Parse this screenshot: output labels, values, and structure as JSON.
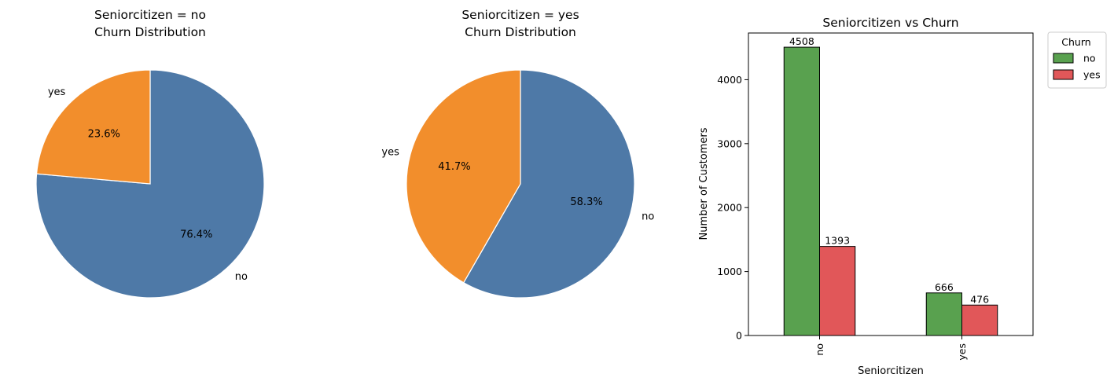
{
  "colors": {
    "pie_no": "#4e79a7",
    "pie_yes": "#f28e2c",
    "bar_no": "#59a14f",
    "bar_yes": "#e15759"
  },
  "chart_data": [
    {
      "type": "pie",
      "title_line1": "Seniorcitizen = no",
      "title_line2": "Churn Distribution",
      "labels": [
        "no",
        "yes"
      ],
      "values": [
        76.4,
        23.6
      ],
      "pct_labels": [
        "76.4%",
        "23.6%"
      ]
    },
    {
      "type": "pie",
      "title_line1": "Seniorcitizen = yes",
      "title_line2": "Churn Distribution",
      "labels": [
        "no",
        "yes"
      ],
      "values": [
        58.3,
        41.7
      ],
      "pct_labels": [
        "58.3%",
        "41.7%"
      ]
    },
    {
      "type": "bar",
      "title": "Seniorcitizen vs Churn",
      "xlabel": "Seniorcitizen",
      "ylabel": "Number of Customers",
      "categories": [
        "no",
        "yes"
      ],
      "series": [
        {
          "name": "no",
          "values": [
            4508,
            666
          ]
        },
        {
          "name": "yes",
          "values": [
            1393,
            476
          ]
        }
      ],
      "ylim": [
        0,
        4730
      ],
      "yticks": [
        0,
        1000,
        2000,
        3000,
        4000
      ],
      "legend": {
        "title": "Churn",
        "placement": "outside-top-right"
      }
    }
  ]
}
